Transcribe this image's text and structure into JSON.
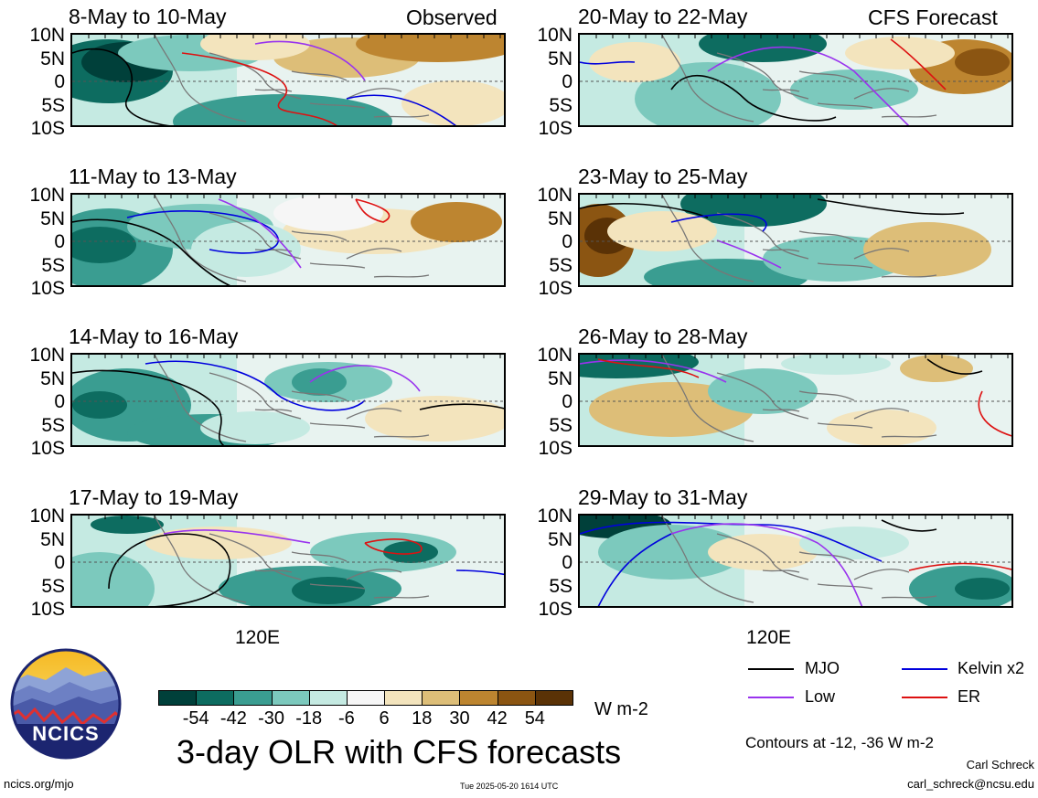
{
  "left_header": {
    "label": "Observed"
  },
  "right_header": {
    "label": "CFS Forecast"
  },
  "latitude_ticks": [
    "10N",
    "5N",
    "0",
    "5S",
    "10S"
  ],
  "longitude_label": "120E",
  "panels": [
    {
      "period": "8-May to 10-May",
      "kind": "observed"
    },
    {
      "period": "11-May to 13-May",
      "kind": "observed"
    },
    {
      "period": "14-May to 16-May",
      "kind": "observed"
    },
    {
      "period": "17-May to 19-May",
      "kind": "observed"
    },
    {
      "period": "20-May to 22-May",
      "kind": "forecast"
    },
    {
      "period": "23-May to 25-May",
      "kind": "forecast"
    },
    {
      "period": "26-May to 28-May",
      "kind": "forecast"
    },
    {
      "period": "29-May to 31-May",
      "kind": "forecast"
    }
  ],
  "colorbar": {
    "labels": [
      "-54",
      "-42",
      "-30",
      "-18",
      "-6",
      "6",
      "18",
      "30",
      "42",
      "54"
    ],
    "colors": [
      "#00403a",
      "#0d6c60",
      "#3a9d91",
      "#7cc9bd",
      "#c5eae2",
      "#f6f6f6",
      "#f3e4bd",
      "#ddbe78",
      "#bd8530",
      "#8b5512",
      "#5a3206"
    ],
    "units": "W m-2"
  },
  "legend": {
    "items": [
      {
        "label": "MJO",
        "color": "#000000"
      },
      {
        "label": "Kelvin x2",
        "color": "#0000dd"
      },
      {
        "label": "Low",
        "color": "#9933ee"
      },
      {
        "label": "ER",
        "color": "#dd1111"
      }
    ],
    "contours_note": "Contours at -12, -36 W m-2"
  },
  "footer": {
    "main_title": "3-day OLR with CFS forecasts",
    "url": "ncics.org/mjo",
    "timestamp": "Tue 2025-05-20 1614 UTC",
    "author": "Carl Schreck",
    "email": "carl_schreck@ncsu.edu",
    "logo_text": "NCICS"
  },
  "chart_data": {
    "type": "heatmap",
    "title": "3-day OLR with CFS forecasts",
    "ylabel_ticks": [
      "10N",
      "5N",
      "0",
      "5S",
      "10S"
    ],
    "ylim": [
      "10S",
      "10N"
    ],
    "xlabel_ticks": [
      "120E"
    ],
    "color_levels": [
      -54,
      -42,
      -30,
      -18,
      -6,
      6,
      18,
      30,
      42,
      54
    ],
    "units": "W m-2",
    "contour_levels": [
      -12,
      -36
    ],
    "contour_series": [
      "MJO",
      "Kelvin x2",
      "Low",
      "ER"
    ],
    "panels": [
      "8-May to 10-May",
      "11-May to 13-May",
      "14-May to 16-May",
      "17-May to 19-May",
      "20-May to 22-May",
      "23-May to 25-May",
      "26-May to 28-May",
      "29-May to 31-May"
    ]
  }
}
